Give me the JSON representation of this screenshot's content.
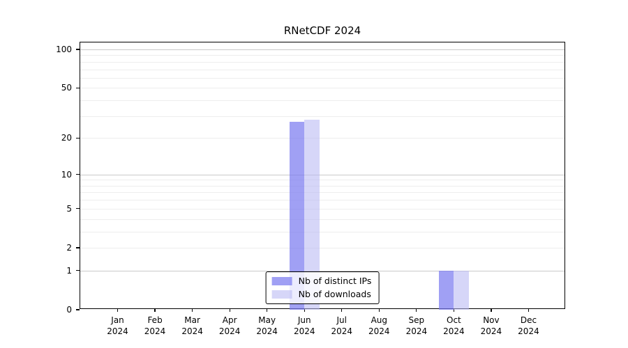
{
  "chart_data": {
    "type": "bar",
    "title": "RNetCDF 2024",
    "categories": [
      "Jan",
      "Feb",
      "Mar",
      "Apr",
      "May",
      "Jun",
      "Jul",
      "Aug",
      "Sep",
      "Oct",
      "Nov",
      "Dec"
    ],
    "category_year": "2024",
    "series": [
      {
        "name": "Nb of distinct IPs",
        "color": "rgba(123,123,240,0.72)",
        "values": [
          0,
          0,
          0,
          0,
          0,
          27,
          0,
          0,
          0,
          1,
          0,
          0
        ]
      },
      {
        "name": "Nb of downloads",
        "color": "rgba(185,185,243,0.58)",
        "values": [
          0,
          0,
          0,
          0,
          0,
          28,
          0,
          0,
          0,
          1,
          0,
          0
        ]
      }
    ],
    "y_scale": "log1p",
    "y_axis": {
      "tick_labels": [
        0,
        1,
        2,
        5,
        10,
        20,
        50,
        100
      ],
      "major_gridlines": [
        1,
        10,
        100
      ],
      "minor_gridlines": [
        2,
        3,
        4,
        5,
        6,
        7,
        8,
        9,
        20,
        30,
        40,
        50,
        60,
        70,
        80,
        90
      ],
      "top": 113.3
    },
    "grid": {
      "major_color": "#c9c9c9",
      "minor_color": "#ededed"
    },
    "legend": {
      "position": "lower center"
    },
    "axis_color": "#000000",
    "plot_background": "#ffffff",
    "bar_width_fraction": 0.4
  }
}
